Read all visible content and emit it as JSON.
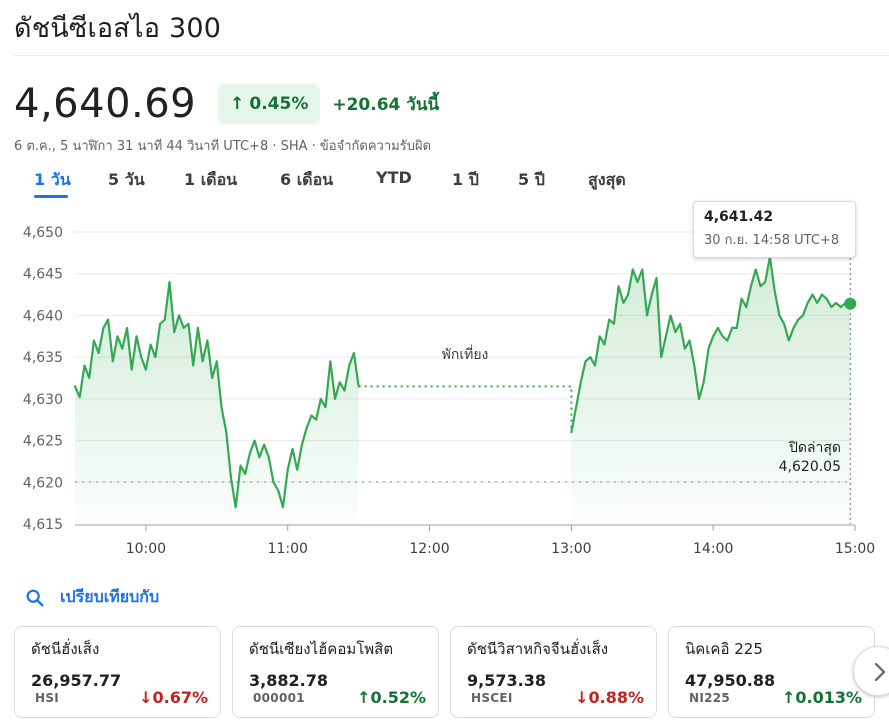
{
  "title": "ดัชนีซีเอสไอ 300",
  "price": "4,640.69",
  "change_pct": "0.45%",
  "change_abs": "+20.64 วันนี้",
  "meta": "6 ต.ค., 5 นาฬิกา 31 นาที 44 วินาที UTC+8 · SHA · ข้อจำกัดความรับผิด",
  "tabs": [
    "1 วัน",
    "5 วัน",
    "1 เดือน",
    "6 เดือน",
    "YTD",
    "1 ปี",
    "5 ปี",
    "สูงสุด"
  ],
  "active_tab": "1 วัน",
  "tooltip": {
    "value": "4,641.42",
    "time": "30 ก.ย. 14:58 UTC+8"
  },
  "lunch_label": "พักเที่ยง",
  "prev_close": {
    "label": "ปิดล่าสุด",
    "value": "4,620.05"
  },
  "compare_label": "เปรียบเทียบกับ",
  "cards": [
    {
      "name": "ดัชนีฮั่งเส็ง",
      "price": "26,957.77",
      "symbol": "HSI",
      "change": "0.67%",
      "direction": "down"
    },
    {
      "name": "ดัชนีเซียงไฮ้คอมโพสิต",
      "price": "3,882.78",
      "symbol": "000001",
      "change": "0.52%",
      "direction": "up"
    },
    {
      "name": "ดัชนีวิสาหกิจจีนฮั่งเส็ง",
      "price": "9,573.38",
      "symbol": "HSCEI",
      "change": "0.88%",
      "direction": "down"
    },
    {
      "name": "นิคเคอิ 225",
      "price": "47,950.88",
      "symbol": "NI225",
      "change": "0.013%",
      "direction": "up"
    }
  ],
  "colors": {
    "up": "#137333",
    "down": "#c5221f",
    "line": "#34a853",
    "accent": "#1a73e8"
  },
  "chart_data": {
    "type": "line",
    "x_ticks": [
      "10:00",
      "11:00",
      "12:00",
      "13:00",
      "14:00",
      "15:00"
    ],
    "y_ticks": [
      "4,650",
      "4,645",
      "4,640",
      "4,635",
      "4,630",
      "4,625",
      "4,620",
      "4,615"
    ],
    "ylim": [
      4615,
      4650
    ],
    "previous_close": 4620.05,
    "lunch_break": [
      "11:30",
      "13:00"
    ],
    "series": [
      {
        "points": [
          [
            "09:30",
            4631.5
          ],
          [
            "09:32",
            4630.2
          ],
          [
            "09:34",
            4634.0
          ],
          [
            "09:36",
            4632.5
          ],
          [
            "09:38",
            4637.0
          ],
          [
            "09:40",
            4635.5
          ],
          [
            "09:42",
            4638.5
          ],
          [
            "09:44",
            4639.5
          ],
          [
            "09:46",
            4634.5
          ],
          [
            "09:48",
            4637.5
          ],
          [
            "09:50",
            4636.0
          ],
          [
            "09:52",
            4638.5
          ],
          [
            "09:54",
            4633.5
          ],
          [
            "09:56",
            4637.5
          ],
          [
            "09:58",
            4635.0
          ],
          [
            "10:00",
            4633.5
          ],
          [
            "10:02",
            4636.5
          ],
          [
            "10:04",
            4635.0
          ],
          [
            "10:06",
            4639.0
          ],
          [
            "10:08",
            4639.5
          ],
          [
            "10:10",
            4644.0
          ],
          [
            "10:12",
            4638.0
          ],
          [
            "10:14",
            4640.0
          ],
          [
            "10:16",
            4638.5
          ],
          [
            "10:18",
            4639.0
          ],
          [
            "10:20",
            4634.0
          ],
          [
            "10:22",
            4638.5
          ],
          [
            "10:24",
            4634.5
          ],
          [
            "10:26",
            4637.0
          ],
          [
            "10:28",
            4632.5
          ],
          [
            "10:30",
            4634.5
          ],
          [
            "10:32",
            4629.0
          ],
          [
            "10:34",
            4626.0
          ],
          [
            "10:36",
            4620.5
          ],
          [
            "10:38",
            4617.0
          ],
          [
            "10:40",
            4622.0
          ],
          [
            "10:42",
            4621.0
          ],
          [
            "10:44",
            4623.5
          ],
          [
            "10:46",
            4625.0
          ],
          [
            "10:48",
            4623.0
          ],
          [
            "10:50",
            4624.5
          ],
          [
            "10:52",
            4623.0
          ],
          [
            "10:54",
            4620.0
          ],
          [
            "10:56",
            4619.0
          ],
          [
            "10:58",
            4617.0
          ],
          [
            "11:00",
            4621.5
          ],
          [
            "11:02",
            4624.0
          ],
          [
            "11:04",
            4621.5
          ],
          [
            "11:06",
            4624.5
          ],
          [
            "11:08",
            4626.5
          ],
          [
            "11:10",
            4628.0
          ],
          [
            "11:12",
            4627.5
          ],
          [
            "11:14",
            4630.0
          ],
          [
            "11:16",
            4629.0
          ],
          [
            "11:18",
            4634.5
          ],
          [
            "11:20",
            4630.0
          ],
          [
            "11:22",
            4632.0
          ],
          [
            "11:24",
            4631.0
          ],
          [
            "11:26",
            4634.0
          ],
          [
            "11:28",
            4635.5
          ],
          [
            "11:30",
            4631.5
          ]
        ]
      },
      {
        "points": [
          [
            "13:00",
            4626.0
          ],
          [
            "13:02",
            4629.0
          ],
          [
            "13:04",
            4632.0
          ],
          [
            "13:06",
            4634.5
          ],
          [
            "13:08",
            4635.0
          ],
          [
            "13:10",
            4634.0
          ],
          [
            "13:12",
            4637.5
          ],
          [
            "13:14",
            4636.5
          ],
          [
            "13:16",
            4639.5
          ],
          [
            "13:18",
            4639.0
          ],
          [
            "13:20",
            4643.5
          ],
          [
            "13:22",
            4641.5
          ],
          [
            "13:24",
            4642.5
          ],
          [
            "13:26",
            4645.5
          ],
          [
            "13:28",
            4644.0
          ],
          [
            "13:30",
            4645.5
          ],
          [
            "13:32",
            4640.0
          ],
          [
            "13:34",
            4642.5
          ],
          [
            "13:36",
            4644.5
          ],
          [
            "13:38",
            4635.0
          ],
          [
            "13:40",
            4637.5
          ],
          [
            "13:42",
            4640.0
          ],
          [
            "13:44",
            4638.0
          ],
          [
            "13:46",
            4639.0
          ],
          [
            "13:48",
            4636.0
          ],
          [
            "13:50",
            4637.0
          ],
          [
            "13:52",
            4634.0
          ],
          [
            "13:54",
            4630.0
          ],
          [
            "13:56",
            4632.0
          ],
          [
            "13:58",
            4636.0
          ],
          [
            "14:00",
            4637.5
          ],
          [
            "14:02",
            4638.5
          ],
          [
            "14:04",
            4637.5
          ],
          [
            "14:06",
            4637.0
          ],
          [
            "14:08",
            4638.5
          ],
          [
            "14:10",
            4638.5
          ],
          [
            "14:12",
            4642.0
          ],
          [
            "14:14",
            4641.0
          ],
          [
            "14:16",
            4643.5
          ],
          [
            "14:18",
            4645.5
          ],
          [
            "14:20",
            4643.5
          ],
          [
            "14:22",
            4644.0
          ],
          [
            "14:24",
            4647.0
          ],
          [
            "14:26",
            4643.0
          ],
          [
            "14:28",
            4640.0
          ],
          [
            "14:30",
            4639.0
          ],
          [
            "14:32",
            4637.0
          ],
          [
            "14:34",
            4638.5
          ],
          [
            "14:36",
            4639.5
          ],
          [
            "14:38",
            4640.0
          ],
          [
            "14:40",
            4641.5
          ],
          [
            "14:42",
            4642.5
          ],
          [
            "14:44",
            4641.5
          ],
          [
            "14:46",
            4642.5
          ],
          [
            "14:48",
            4642.0
          ],
          [
            "14:50",
            4641.0
          ],
          [
            "14:52",
            4641.5
          ],
          [
            "14:54",
            4641.0
          ],
          [
            "14:56",
            4641.5
          ],
          [
            "14:58",
            4641.42
          ]
        ]
      }
    ]
  }
}
